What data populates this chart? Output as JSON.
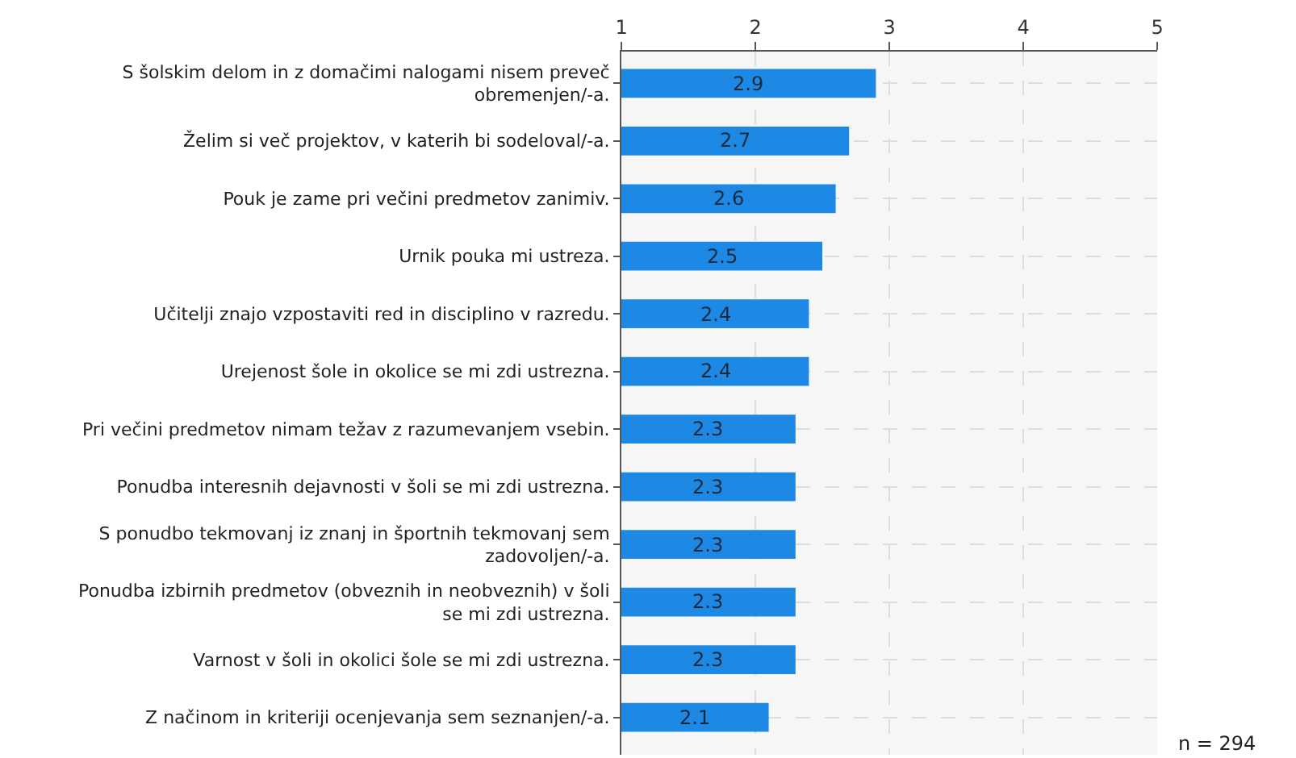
{
  "chart_data": {
    "type": "bar",
    "orientation": "horizontal",
    "categories": [
      "S šolskim delom in z domačimi nalogami nisem preveč obremenjen/-a.",
      "Želim si več projektov, v katerih bi sodeloval/-a.",
      "Pouk je zame pri večini predmetov zanimiv.",
      "Urnik pouka mi ustreza.",
      "Učitelji znajo vzpostaviti red in disciplino v razredu.",
      "Urejenost šole in okolice se mi zdi ustrezna.",
      "Pri večini predmetov nimam težav z razumevanjem vsebin.",
      "Ponudba interesnih dejavnosti v šoli se mi zdi ustrezna.",
      "S ponudbo tekmovanj iz znanj in športnih tekmovanj sem zadovoljen/-a.",
      "Ponudba izbirnih predmetov (obveznih in neobveznih) v šoli se mi zdi ustrezna.",
      "Varnost v šoli in okolici šole se mi zdi ustrezna.",
      "Z načinom in kriteriji ocenjevanja sem seznanjen/-a."
    ],
    "values": [
      2.9,
      2.7,
      2.6,
      2.5,
      2.4,
      2.4,
      2.3,
      2.3,
      2.3,
      2.3,
      2.3,
      2.1
    ],
    "color": "#1e88e5",
    "data_labels": true,
    "xlim": [
      1,
      5
    ],
    "xticks": [
      1,
      2,
      3,
      4,
      5
    ],
    "grid": true,
    "annotations": [
      "n = 294"
    ]
  }
}
